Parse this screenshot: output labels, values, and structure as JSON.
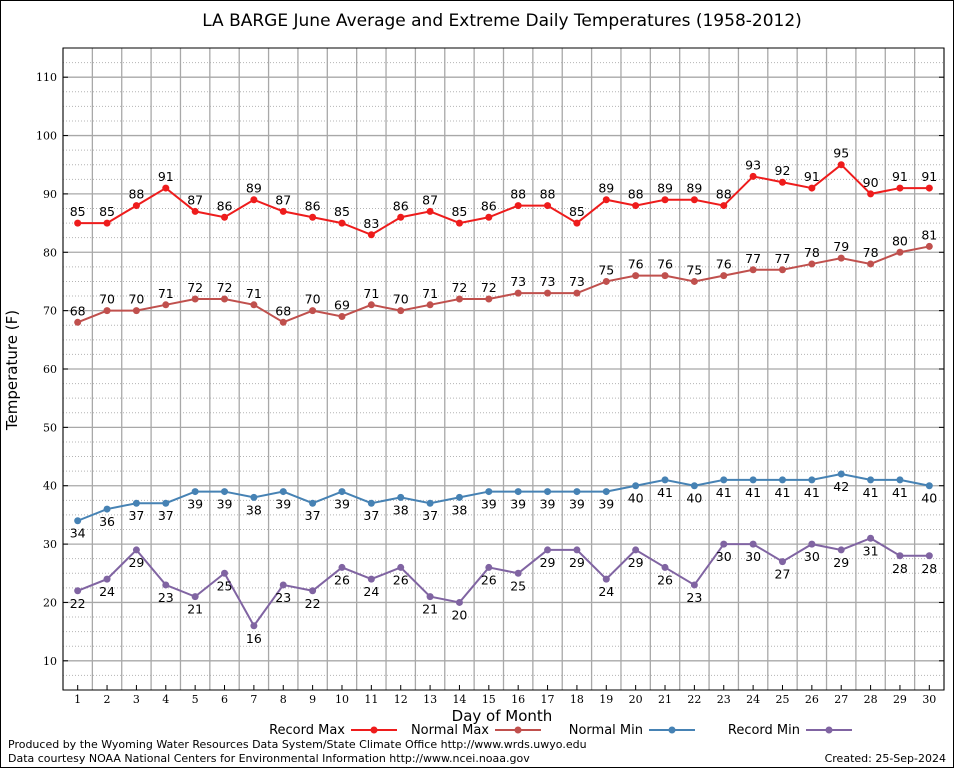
{
  "chart_data": {
    "type": "line",
    "title": "LA BARGE June Average and Extreme Daily Temperatures (1958-2012)",
    "xlabel": "Day of Month",
    "ylabel": "Temperature (F)",
    "x": [
      1,
      2,
      3,
      4,
      5,
      6,
      7,
      8,
      9,
      10,
      11,
      12,
      13,
      14,
      15,
      16,
      17,
      18,
      19,
      20,
      21,
      22,
      23,
      24,
      25,
      26,
      27,
      28,
      29,
      30
    ],
    "xlim": [
      0.5,
      30.5
    ],
    "ylim": [
      5,
      115
    ],
    "yticks": [
      10,
      20,
      30,
      40,
      50,
      60,
      70,
      80,
      90,
      100,
      110
    ],
    "grid": true,
    "legend_position": "bottom",
    "series": [
      {
        "name": "Record Max",
        "color": "#ee1c1c",
        "label_position": "above",
        "values": [
          85,
          85,
          88,
          91,
          87,
          86,
          89,
          87,
          86,
          85,
          83,
          86,
          87,
          85,
          86,
          88,
          88,
          85,
          89,
          88,
          89,
          89,
          88,
          93,
          92,
          91,
          95,
          90,
          91,
          91
        ]
      },
      {
        "name": "Normal Max",
        "color": "#c0504d",
        "label_position": "above",
        "values": [
          68,
          70,
          70,
          71,
          72,
          72,
          71,
          68,
          70,
          69,
          71,
          70,
          71,
          72,
          72,
          73,
          73,
          73,
          75,
          76,
          76,
          75,
          76,
          77,
          77,
          78,
          79,
          78,
          80,
          81
        ]
      },
      {
        "name": "Normal Min",
        "color": "#4682b4",
        "label_position": "below",
        "values": [
          34,
          36,
          37,
          37,
          39,
          39,
          38,
          39,
          37,
          39,
          37,
          38,
          37,
          38,
          39,
          39,
          39,
          39,
          39,
          40,
          41,
          40,
          41,
          41,
          41,
          41,
          42,
          41,
          41,
          40
        ]
      },
      {
        "name": "Record Min",
        "color": "#8064a2",
        "label_position": "below",
        "values": [
          22,
          24,
          29,
          23,
          21,
          25,
          16,
          23,
          22,
          26,
          24,
          26,
          21,
          20,
          26,
          25,
          29,
          29,
          24,
          29,
          26,
          23,
          30,
          30,
          27,
          30,
          29,
          31,
          28,
          28
        ]
      }
    ]
  },
  "footer": {
    "produced_by": "Produced by the Wyoming Water Resources Data System/State Climate Office http://www.wrds.uwyo.edu",
    "courtesy": "Data courtesy NOAA National Centers for Environmental Information http://www.ncei.noaa.gov",
    "created": "Created:  25-Sep-2024"
  }
}
